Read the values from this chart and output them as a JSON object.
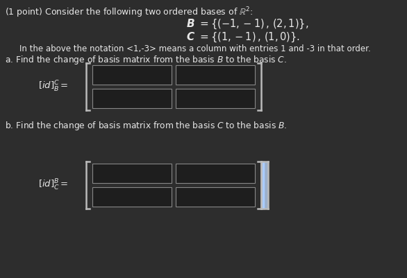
{
  "background_color": "#2d2d2d",
  "text_color": "#e8e8e8",
  "box_fill": "#1e1e1e",
  "box_stroke": "#888888",
  "bracket_color": "#bbbbbb",
  "double_bracket_color": "#aaccff",
  "title_line": "(1 point) Consider the following two ordered bases of $\\mathbb{R}^2$:",
  "basis_B_eq": "$\\boldsymbol{B}   =   \\{(-1,-1)\\,,\\,(2,1)\\},$",
  "basis_C_eq": "$\\boldsymbol{C}   =   \\{(1,-1)\\,,\\,(1,0)\\}.$",
  "notation_text": "In the above the notation <1,-3> means a column with entries 1 and -3 in that order.",
  "part_a_text": "a. Find the change of basis matrix from the basis $\\mathit{B}$ to the basis $\\mathit{C}$.",
  "part_b_text": "b. Find the change of basis matrix from the basis $\\mathit{C}$ to the basis $\\mathit{B}$.",
  "label_a": "$[id]^C_B =$",
  "label_b": "$[id]^B_C =$"
}
